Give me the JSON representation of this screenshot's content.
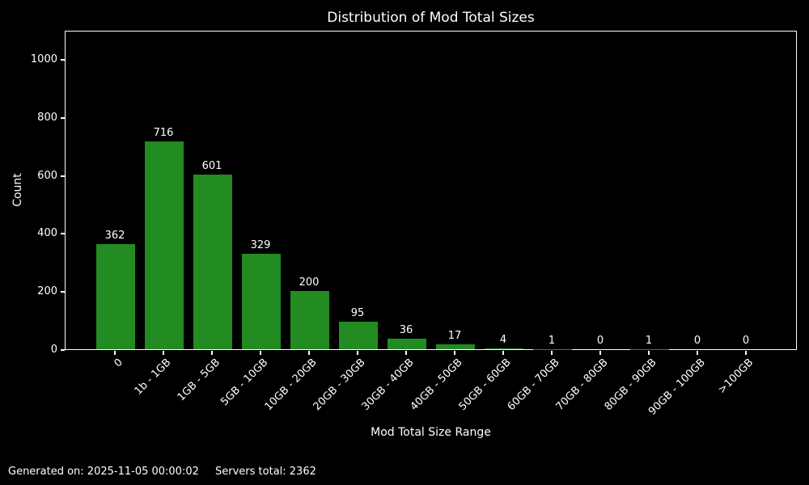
{
  "title": "Distribution of Mod Total Sizes",
  "footer": {
    "generated": "Generated on: 2025-11-05 00:00:02",
    "servers_total": "Servers total: 2362"
  },
  "colors": {
    "background": "#000000",
    "bar": "#228B22",
    "text": "#ffffff",
    "axis": "#ffffff"
  },
  "chart_data": {
    "type": "bar",
    "title": "Distribution of Mod Total Sizes",
    "xlabel": "Mod Total Size Range",
    "ylabel": "Count",
    "categories": [
      "0",
      "1b - 1GB",
      "1GB - 5GB",
      "5GB - 10GB",
      "10GB - 20GB",
      "20GB - 30GB",
      "30GB - 40GB",
      "40GB - 50GB",
      "50GB - 60GB",
      "60GB - 70GB",
      "70GB - 80GB",
      "80GB - 90GB",
      "90GB - 100GB",
      ">100GB"
    ],
    "values": [
      362,
      716,
      601,
      329,
      200,
      95,
      36,
      17,
      4,
      1,
      0,
      1,
      0,
      0
    ],
    "bar_labels": true,
    "ylim": [
      0,
      1100
    ],
    "yticks": [
      0,
      200,
      400,
      600,
      800,
      1000
    ],
    "grid": false,
    "legend_position": "none",
    "x_tick_rotation": 45
  }
}
